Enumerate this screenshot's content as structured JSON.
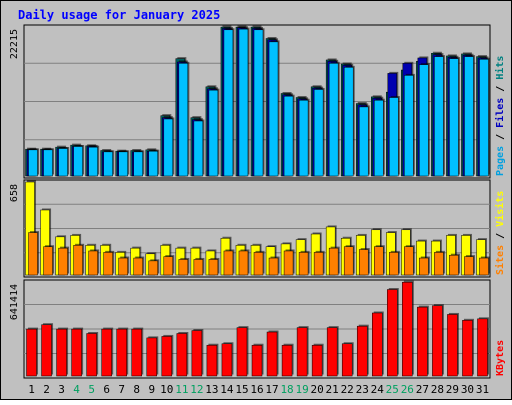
{
  "chart_data": {
    "type": "bar",
    "title": "Daily usage for January 2025",
    "days": [
      "1",
      "2",
      "3",
      "4",
      "5",
      "6",
      "7",
      "8",
      "9",
      "10",
      "11",
      "12",
      "13",
      "14",
      "15",
      "16",
      "17",
      "18",
      "19",
      "20",
      "21",
      "22",
      "23",
      "24",
      "25",
      "26",
      "27",
      "28",
      "29",
      "30",
      "31"
    ],
    "weekend_days": [
      "4",
      "5",
      "11",
      "12",
      "18",
      "19",
      "25",
      "26"
    ],
    "panels": [
      {
        "id": "hits",
        "max_label": "22215",
        "ymax": 22215,
        "grid": true,
        "legend": [
          {
            "label": "Pages",
            "color": "#00a0e0"
          },
          {
            "label": "Files",
            "color": "#0000c0"
          },
          {
            "label": "Hits",
            "color": "#008080"
          }
        ],
        "series": [
          {
            "name": "Hits",
            "color": "#006060",
            "values": [
              4000,
              4000,
              4300,
              4600,
              4500,
              3800,
              3700,
              3800,
              3900,
              9000,
              17500,
              8700,
              13300,
              22200,
              22200,
              22200,
              20500,
              12300,
              11700,
              13300,
              17300,
              16700,
              10800,
              11800,
              12500,
              15800,
              17100,
              18300,
              17900,
              18200,
              17800
            ]
          },
          {
            "name": "Files",
            "color": "#0000b0",
            "values": [
              3900,
              3900,
              4100,
              4400,
              4400,
              3600,
              3600,
              3600,
              3700,
              8700,
              17000,
              8400,
              13000,
              22000,
              22100,
              22000,
              20300,
              12100,
              11500,
              13100,
              17100,
              16500,
              10600,
              11600,
              15300,
              16800,
              17600,
              18100,
              17700,
              18000,
              17600
            ]
          },
          {
            "name": "Pages",
            "color": "#00c0ff",
            "values": [
              3900,
              3900,
              4100,
              4400,
              4300,
              3600,
              3600,
              3600,
              3700,
              8500,
              16800,
              8200,
              12800,
              21800,
              21900,
              21800,
              20000,
              11900,
              11300,
              12900,
              16800,
              16200,
              10300,
              11300,
              11700,
              15000,
              16600,
              17800,
              17500,
              17800,
              17400
            ]
          }
        ]
      },
      {
        "id": "visits",
        "max_label": "658",
        "ymax": 658,
        "grid": true,
        "legend": [
          {
            "label": "Sites",
            "color": "#ff8000"
          },
          {
            "label": "Visits",
            "color": "#ffff00"
          }
        ],
        "series": [
          {
            "name": "Visits",
            "color": "#ffff00",
            "values": [
              658,
              460,
              270,
              280,
              210,
              210,
              160,
              190,
              150,
              210,
              190,
              190,
              170,
              260,
              210,
              210,
              200,
              220,
              250,
              290,
              340,
              260,
              280,
              320,
              300,
              320,
              240,
              240,
              280,
              280,
              250
            ]
          },
          {
            "name": "Sites",
            "color": "#ff8000",
            "values": [
              300,
              200,
              190,
              210,
              170,
              160,
              120,
              120,
              100,
              130,
              110,
              110,
              110,
              170,
              170,
              160,
              120,
              170,
              160,
              160,
              190,
              200,
              180,
              200,
              160,
              200,
              120,
              160,
              140,
              130,
              120
            ]
          }
        ]
      },
      {
        "id": "kbytes",
        "max_label": "641414",
        "ymax": 641414,
        "grid": true,
        "legend": [
          {
            "label": "KBytes",
            "color": "#ff0000"
          }
        ],
        "series": [
          {
            "name": "KBytes",
            "color": "#ff0000",
            "values": [
              320000,
              350000,
              320000,
              320000,
              290000,
              320000,
              320000,
              320000,
              260000,
              270000,
              290000,
              310000,
              210000,
              220000,
              330000,
              210000,
              300000,
              210000,
              330000,
              210000,
              330000,
              220000,
              340000,
              430000,
              590000,
              640000,
              470000,
              480000,
              420000,
              380000,
              390000
            ]
          }
        ]
      }
    ]
  }
}
